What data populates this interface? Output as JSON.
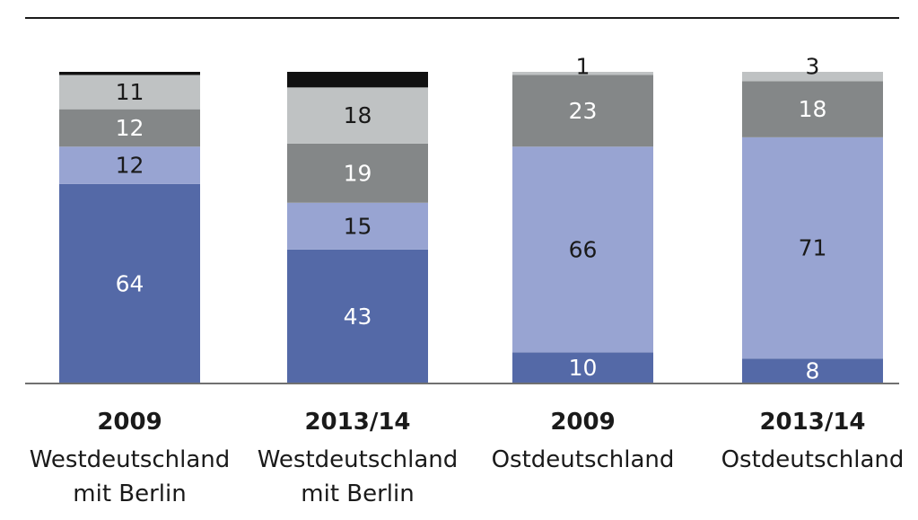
{
  "chart_data": {
    "type": "bar",
    "stacked": true,
    "orientation": "vertical",
    "ylim": [
      0,
      100
    ],
    "grid": false,
    "legend": "none",
    "categories": [
      {
        "year": "2009",
        "region": [
          "Westdeutschland",
          "mit Berlin"
        ]
      },
      {
        "year": "2013/14",
        "region": [
          "Westdeutschland",
          "mit Berlin"
        ]
      },
      {
        "year": "2009",
        "region": [
          "Ostdeutschland"
        ]
      },
      {
        "year": "2013/14",
        "region": [
          "Ostdeutschland"
        ]
      }
    ],
    "series": [
      {
        "color": "#5469a7",
        "label_color": "#ffffff",
        "values": [
          64,
          43,
          10,
          8
        ]
      },
      {
        "color": "#98a4d2",
        "label_color": "#1a1a1a",
        "values": [
          12,
          15,
          66,
          71
        ]
      },
      {
        "color": "#848788",
        "label_color": "#ffffff",
        "values": [
          12,
          19,
          23,
          18
        ]
      },
      {
        "color": "#bfc2c3",
        "label_color": "#1a1a1a",
        "values": [
          11,
          18,
          1,
          3
        ]
      },
      {
        "color": "#111111",
        "label_color": "#ffffff",
        "values": [
          1,
          5,
          0,
          0
        ]
      }
    ],
    "value_labels": [
      [
        "64",
        "43",
        "10",
        "8"
      ],
      [
        "12",
        "15",
        "66",
        "71"
      ],
      [
        "12",
        "19",
        "23",
        "18"
      ],
      [
        "11",
        "18",
        "1",
        "3"
      ],
      [
        "",
        "",
        "",
        ""
      ]
    ]
  }
}
